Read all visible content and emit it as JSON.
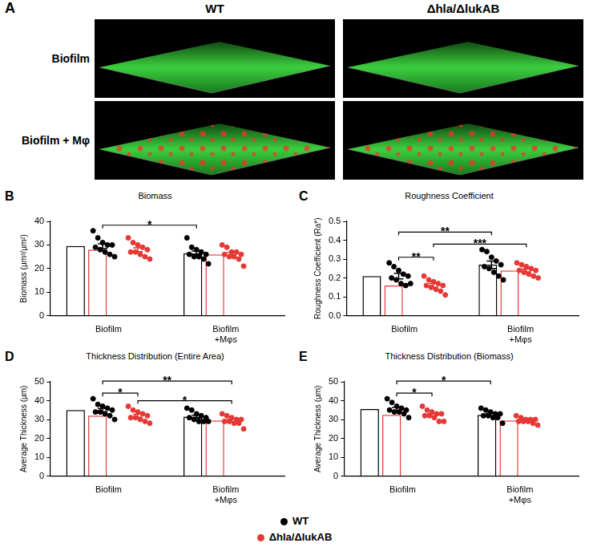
{
  "panel_a": {
    "letter": "A",
    "columns": [
      "WT",
      "Δhla/ΔlukAB"
    ],
    "rows": [
      "Biofilm",
      "Biofilm + Mφ"
    ]
  },
  "chart_data": [
    {
      "letter": "B",
      "type": "bar",
      "title": "Biomass",
      "y_label": "Biomass (µm³/µm²)",
      "categories": [
        "Biofilm",
        "Biofilm +Mφs"
      ],
      "ylim": [
        0,
        40
      ],
      "yticks": [
        0,
        10,
        20,
        30,
        40
      ],
      "grid": false,
      "legend": "bottom",
      "series": [
        {
          "name": "WT",
          "color": "#000000",
          "values": [
            29.5,
            26.5
          ],
          "errors": [
            1.0,
            0.9
          ],
          "points": [
            [
              36,
              33,
              31,
              30,
              30,
              29,
              28,
              27,
              26,
              25
            ],
            [
              33,
              29,
              28,
              27,
              26,
              26,
              25,
              25,
              24,
              22
            ]
          ]
        },
        {
          "name": "Δhla/ΔlukAB",
          "color": "#e53935",
          "values": [
            28,
            26
          ],
          "errors": [
            0.8,
            0.8
          ],
          "points": [
            [
              33,
              31,
              30,
              29,
              28,
              27,
              27,
              26,
              25,
              24
            ],
            [
              30,
              29,
              27,
              27,
              26,
              26,
              25,
              25,
              24,
              21
            ]
          ]
        }
      ],
      "comparisons": [
        {
          "from": [
            "WT",
            "Biofilm"
          ],
          "to": [
            "WT",
            "Biofilm +Mφs"
          ],
          "label": "*"
        }
      ]
    },
    {
      "letter": "C",
      "type": "bar",
      "title": "Roughness Coefficient",
      "y_label": "Roughness Coefficient (Ra*)",
      "categories": [
        "Biofilm",
        "Biofilm +Mφs"
      ],
      "ylim": [
        0,
        0.5
      ],
      "yticks": [
        {
          "value": 0,
          "label": "0.0"
        },
        {
          "value": 0.1,
          "label": "0.1"
        },
        {
          "value": 0.2,
          "label": "0.2"
        },
        {
          "value": 0.3,
          "label": "0.3"
        },
        {
          "value": 0.4,
          "label": "0.4"
        },
        {
          "value": 0.5,
          "label": "0.5"
        }
      ],
      "grid": false,
      "legend": "bottom",
      "series": [
        {
          "name": "WT",
          "color": "#000000",
          "values": [
            0.21,
            0.27
          ],
          "errors": [
            0.015,
            0.02
          ],
          "points": [
            [
              0.28,
              0.26,
              0.24,
              0.22,
              0.21,
              0.2,
              0.19,
              0.17,
              0.16,
              0.17
            ],
            [
              0.35,
              0.34,
              0.31,
              0.29,
              0.27,
              0.26,
              0.25,
              0.23,
              0.21,
              0.19
            ]
          ]
        },
        {
          "name": "Δhla/ΔlukAB",
          "color": "#e53935",
          "values": [
            0.16,
            0.24
          ],
          "errors": [
            0.01,
            0.008
          ],
          "points": [
            [
              0.21,
              0.19,
              0.18,
              0.17,
              0.16,
              0.16,
              0.15,
              0.14,
              0.13,
              0.11
            ],
            [
              0.28,
              0.27,
              0.26,
              0.25,
              0.24,
              0.24,
              0.23,
              0.22,
              0.21,
              0.2
            ]
          ]
        }
      ],
      "comparisons": [
        {
          "from": [
            "WT",
            "Biofilm"
          ],
          "to": [
            "Δhla/ΔlukAB",
            "Biofilm"
          ],
          "label": "**"
        },
        {
          "from": [
            "Δhla/ΔlukAB",
            "Biofilm"
          ],
          "to": [
            "Δhla/ΔlukAB",
            "Biofilm +Mφs"
          ],
          "label": "***"
        },
        {
          "from": [
            "WT",
            "Biofilm"
          ],
          "to": [
            "WT",
            "Biofilm +Mφs"
          ],
          "label": "**"
        }
      ]
    },
    {
      "letter": "D",
      "type": "bar",
      "title": "Thickness Distribution (Entire Area)",
      "y_label": "Average Thickness (µm)",
      "categories": [
        "Biofilm",
        "Biofilm +Mφs"
      ],
      "ylim": [
        0,
        50
      ],
      "yticks": [
        0,
        10,
        20,
        30,
        40,
        50
      ],
      "grid": false,
      "legend": "bottom",
      "series": [
        {
          "name": "WT",
          "color": "#000000",
          "values": [
            35,
            31.5
          ],
          "errors": [
            0.9,
            0.8
          ],
          "points": [
            [
              41,
              38,
              37,
              36,
              35,
              34,
              34,
              33,
              32,
              30
            ],
            [
              36,
              35,
              33,
              32,
              31,
              31,
              30,
              29,
              29,
              29
            ]
          ]
        },
        {
          "name": "Δhla/ΔlukAB",
          "color": "#e53935",
          "values": [
            32,
            29.5
          ],
          "errors": [
            0.8,
            0.7
          ],
          "points": [
            [
              37,
              35,
              34,
              33,
              32,
              31,
              31,
              30,
              29,
              28
            ],
            [
              33,
              32,
              31,
              30,
              30,
              29,
              29,
              28,
              28,
              25
            ]
          ]
        }
      ],
      "comparisons": [
        {
          "from": [
            "WT",
            "Biofilm"
          ],
          "to": [
            "Δhla/ΔlukAB",
            "Biofilm"
          ],
          "label": "*"
        },
        {
          "from": [
            "Δhla/ΔlukAB",
            "Biofilm"
          ],
          "to": [
            "Δhla/ΔlukAB",
            "Biofilm +Mφs"
          ],
          "label": "*"
        },
        {
          "from": [
            "WT",
            "Biofilm"
          ],
          "to": [
            "Δhla/ΔlukAB",
            "Biofilm +Mφs"
          ],
          "label": "**"
        }
      ]
    },
    {
      "letter": "E",
      "type": "bar",
      "title": "Thickness Distribution (Biomass)",
      "y_label": "Average Thickness (µm)",
      "categories": [
        "Biofilm",
        "Biofilm +Mφs"
      ],
      "ylim": [
        0,
        50
      ],
      "yticks": [
        0,
        10,
        20,
        30,
        40,
        50
      ],
      "grid": false,
      "legend": "bottom",
      "series": [
        {
          "name": "WT",
          "color": "#000000",
          "values": [
            35.5,
            32.5
          ],
          "errors": [
            0.9,
            0.8
          ],
          "points": [
            [
              41,
              39,
              37,
              36,
              35,
              35,
              34,
              34,
              33,
              31
            ],
            [
              36,
              35,
              34,
              33,
              33,
              32,
              32,
              31,
              31,
              28
            ]
          ]
        },
        {
          "name": "Δhla/ΔlukAB",
          "color": "#e53935",
          "values": [
            32.5,
            29.5
          ],
          "errors": [
            0.7,
            0.5
          ],
          "points": [
            [
              37,
              35,
              34,
              33,
              33,
              32,
              32,
              31,
              29,
              29
            ],
            [
              32,
              31,
              30,
              30,
              30,
              29,
              29,
              29,
              28,
              27
            ]
          ]
        }
      ],
      "comparisons": [
        {
          "from": [
            "WT",
            "Biofilm"
          ],
          "to": [
            "Δhla/ΔlukAB",
            "Biofilm"
          ],
          "label": "*"
        },
        {
          "from": [
            "WT",
            "Biofilm"
          ],
          "to": [
            "WT",
            "Biofilm +Mφs"
          ],
          "label": "*"
        }
      ]
    }
  ]
}
